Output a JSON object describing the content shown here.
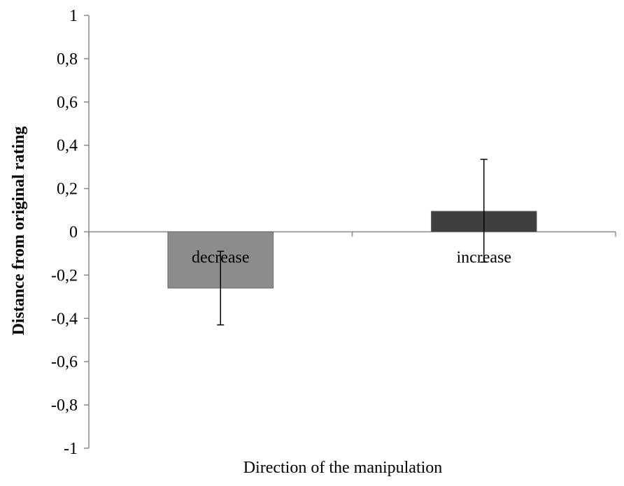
{
  "chart_data": {
    "type": "bar",
    "title": "",
    "xlabel": "Direction of the manipulation",
    "ylabel": "Distance from original rating",
    "ylim": [
      -1,
      1
    ],
    "yticks": [
      1,
      0.8,
      0.6,
      0.4,
      0.2,
      0,
      -0.2,
      -0.4,
      -0.6,
      -0.8,
      -1
    ],
    "ytick_labels": [
      "1",
      "0,8",
      "0,6",
      "0,4",
      "0,2",
      "0",
      "-0,2",
      "-0,4",
      "-0,6",
      "-0,8",
      "-1"
    ],
    "categories": [
      "decrease",
      "increase"
    ],
    "values": [
      -0.26,
      0.095
    ],
    "error_low": [
      -0.43,
      -0.14
    ],
    "error_high": [
      -0.09,
      0.335
    ],
    "colors": [
      "#8c8c8c",
      "#3f3f3f"
    ],
    "grid": false,
    "legend": "none"
  }
}
